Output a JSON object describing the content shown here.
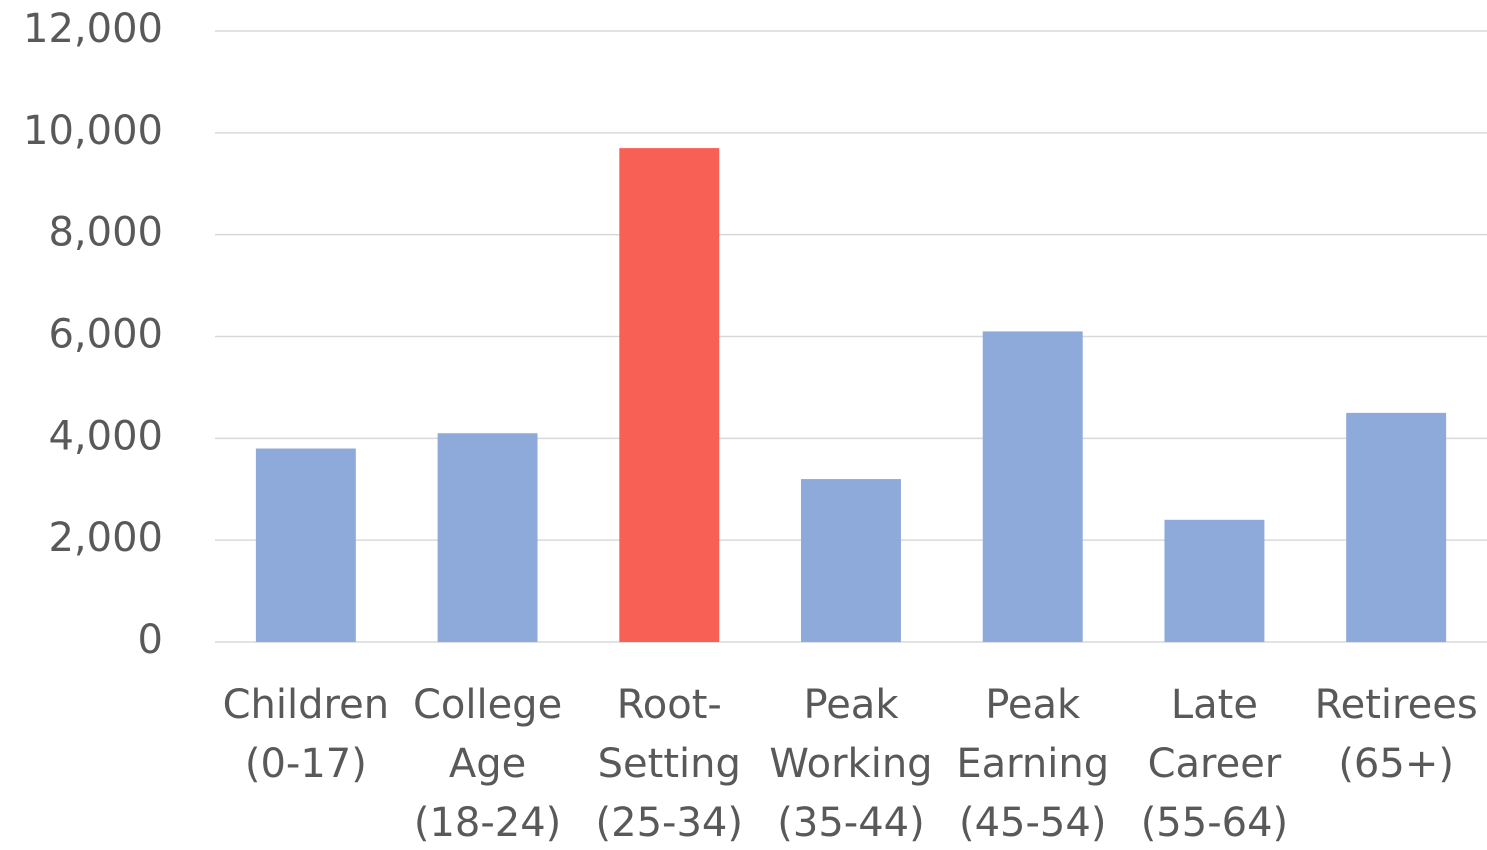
{
  "chart_data": {
    "type": "bar",
    "categories": [
      [
        "Children",
        "(0-17)"
      ],
      [
        "College",
        "Age",
        "(18-24)"
      ],
      [
        "Root-",
        "Setting",
        "(25-34)"
      ],
      [
        "Peak",
        "Working",
        "(35-44)"
      ],
      [
        "Peak",
        "Earning",
        "(45-54)"
      ],
      [
        "Late",
        "Career",
        "(55-64)"
      ],
      [
        "Retirees",
        "(65+)"
      ]
    ],
    "values": [
      3800,
      4100,
      9700,
      3200,
      6100,
      2400,
      4500
    ],
    "colors": [
      "#8eaadb",
      "#8eaadb",
      "#f96055",
      "#8eaadb",
      "#8eaadb",
      "#8eaadb",
      "#8eaadb"
    ],
    "ylim": [
      0,
      12000
    ],
    "yticks": [
      0,
      {
        "value": 2000,
        "label": "2,000"
      },
      {
        "value": 4000,
        "label": "4,000"
      },
      {
        "value": 6000,
        "label": "6,000"
      },
      {
        "value": 8000,
        "label": "8,000"
      },
      {
        "value": 10000,
        "label": "10,000"
      },
      {
        "value": 12000,
        "label": "12,000"
      }
    ],
    "grid": true
  }
}
